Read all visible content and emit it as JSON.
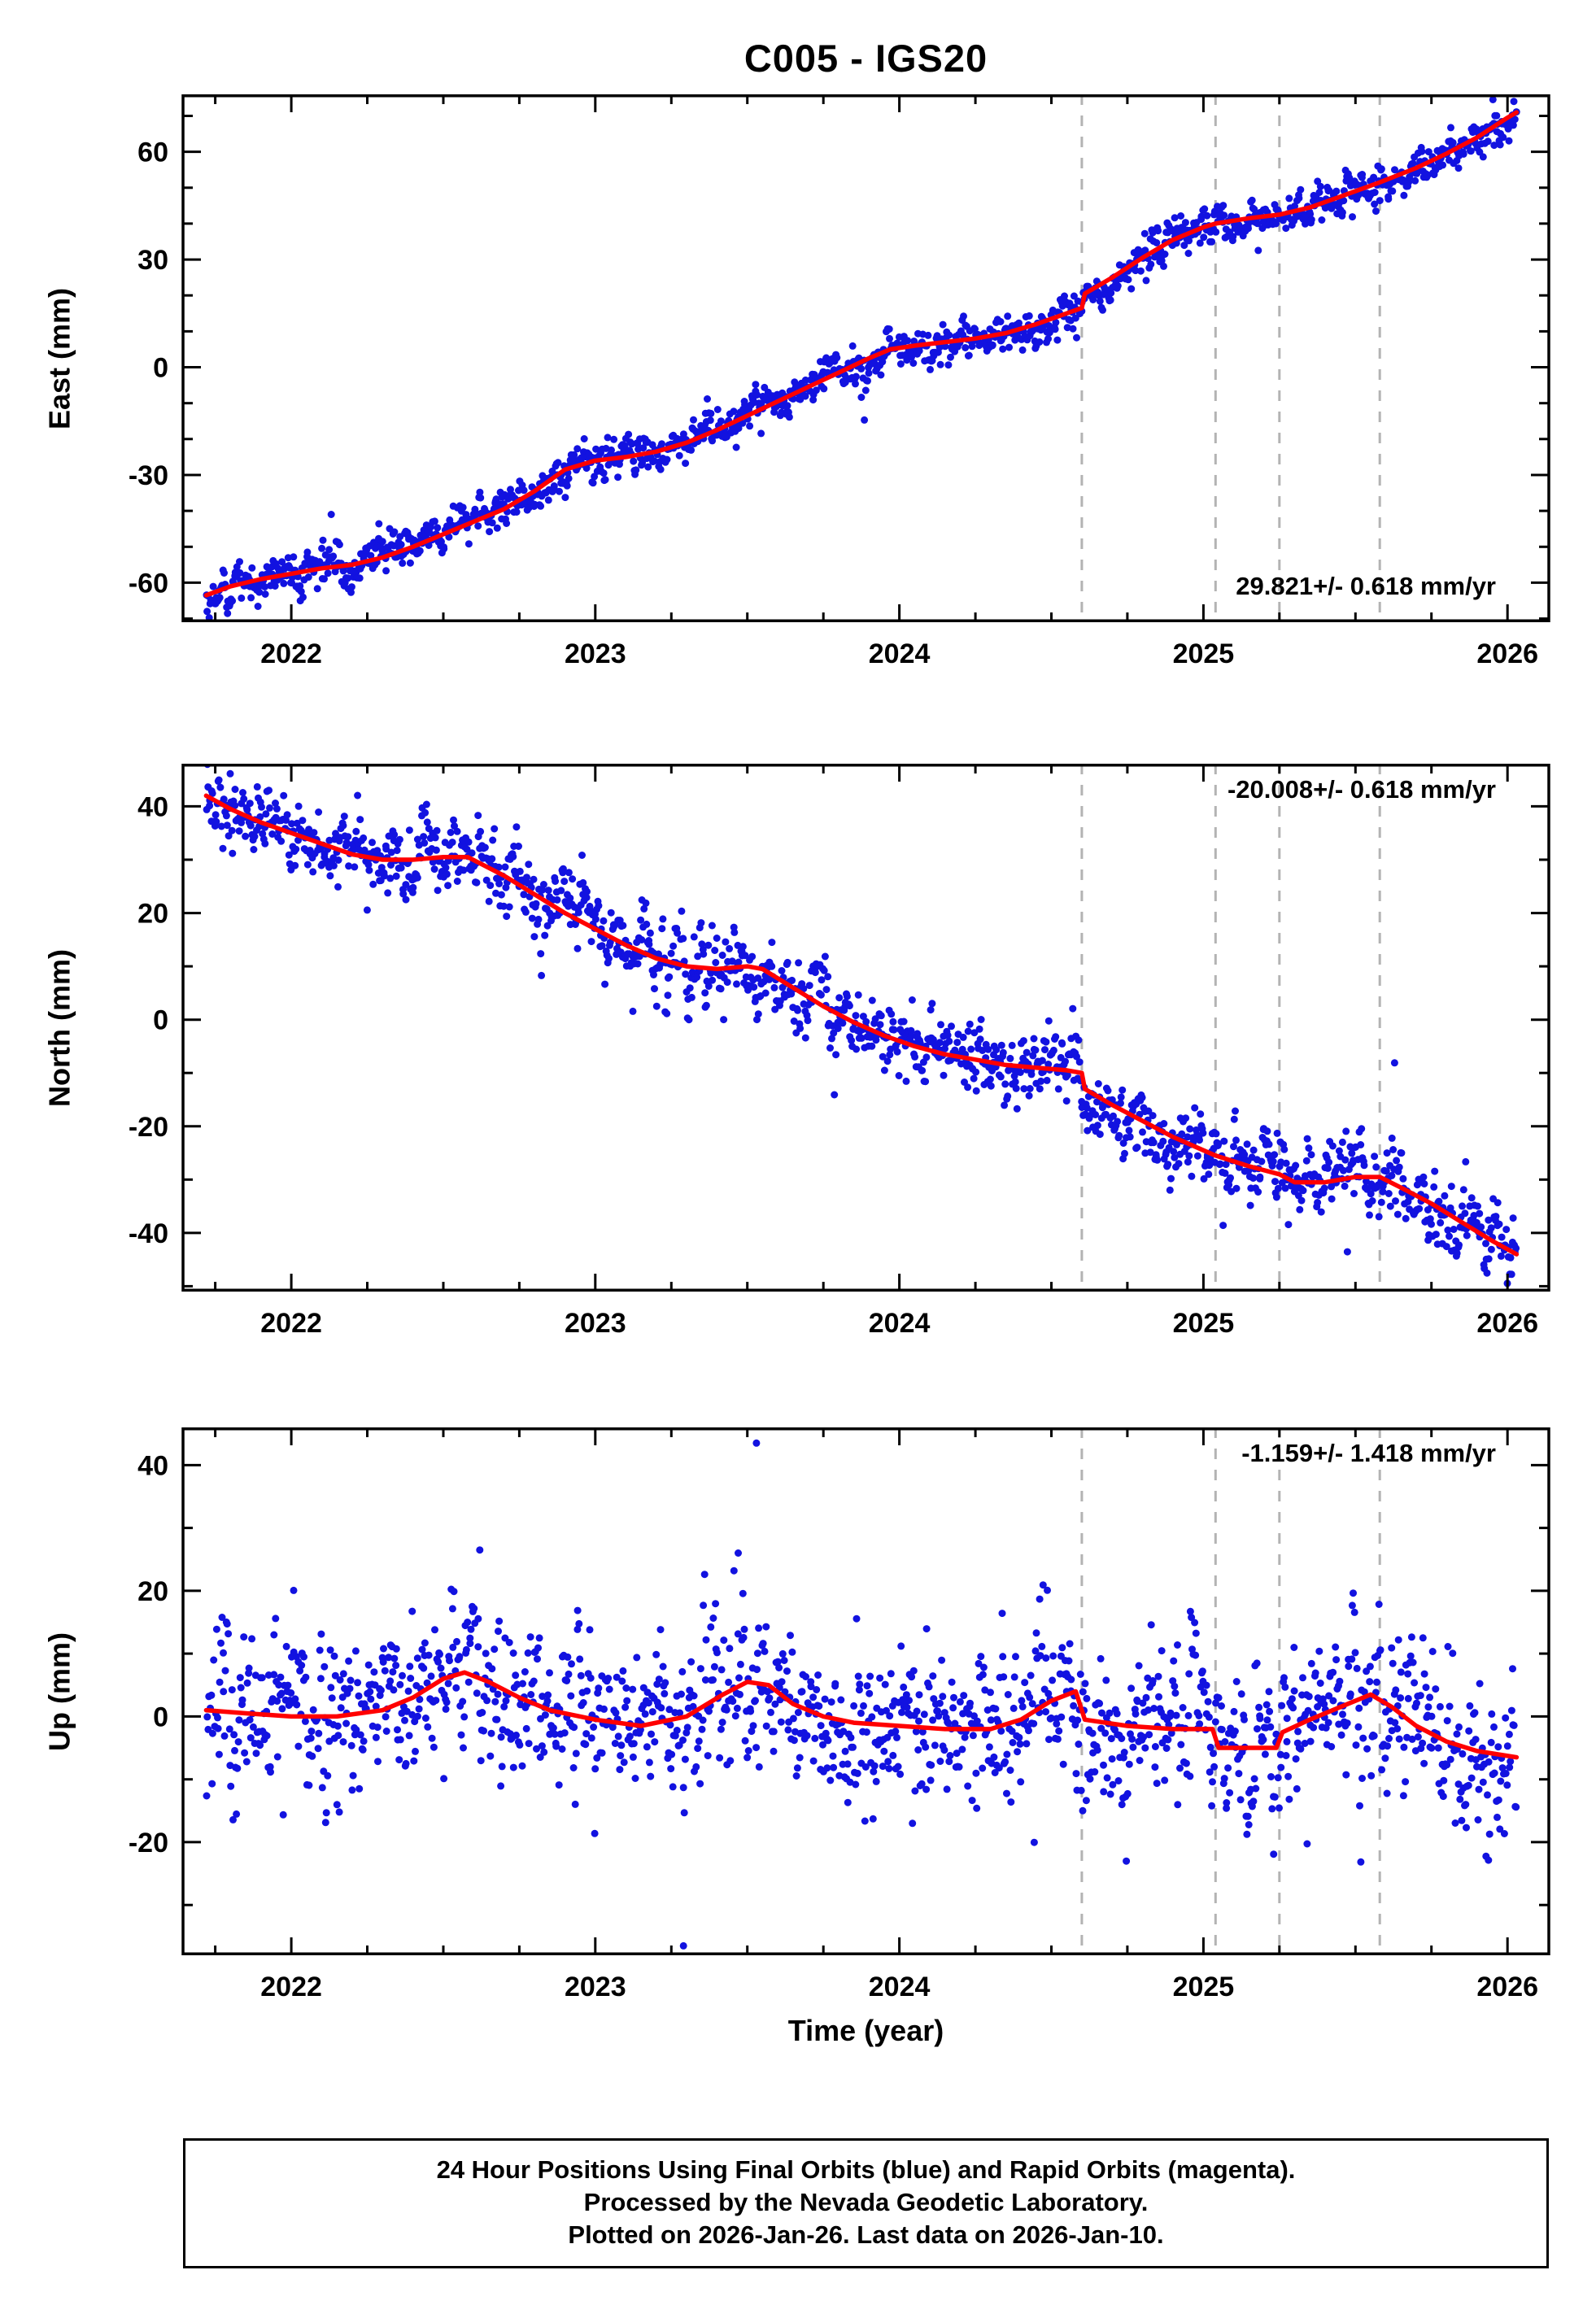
{
  "title": "C005 - IGS20",
  "xlabel": "Time (year)",
  "footer_lines": [
    "24 Hour Positions Using Final Orbits (blue) and Rapid Orbits (magenta).",
    "Processed by the Nevada Geodetic Laboratory.",
    "Plotted on 2026-Jan-26. Last data on 2026-Jan-10."
  ],
  "colors": {
    "points": "#1212e0",
    "trend": "#ff0000",
    "events": "#b3b3b3",
    "frame": "#000000"
  },
  "chart_data": [
    {
      "type": "scatter",
      "name": "east",
      "ylabel": "East (mm)",
      "rate_label": "29.821+/- 0.618 mm/yr",
      "rate_label_corner": "bottom-right",
      "xlim": [
        2021.644,
        2026.136
      ],
      "ylim": [
        -71,
        76
      ],
      "xticks": [
        2022,
        2023,
        2024,
        2025,
        2026
      ],
      "yticks": [
        -60,
        -30,
        0,
        30,
        60
      ],
      "x_minor_step": 0.25,
      "y_minor_step": 10,
      "event_lines_x": [
        2024.6,
        2025.04,
        2025.25,
        2025.58
      ],
      "trend": [
        [
          2021.72,
          -63.5
        ],
        [
          2021.8,
          -61.0
        ],
        [
          2021.9,
          -59.0
        ],
        [
          2022.0,
          -57.5
        ],
        [
          2022.1,
          -56.0
        ],
        [
          2022.2,
          -55.0
        ],
        [
          2022.3,
          -53.0
        ],
        [
          2022.4,
          -50.0
        ],
        [
          2022.5,
          -46.5
        ],
        [
          2022.6,
          -43.0
        ],
        [
          2022.7,
          -39.5
        ],
        [
          2022.8,
          -34.5
        ],
        [
          2022.9,
          -28.5
        ],
        [
          2023.0,
          -26.0
        ],
        [
          2023.1,
          -25.0
        ],
        [
          2023.2,
          -23.5
        ],
        [
          2023.3,
          -21.0
        ],
        [
          2023.4,
          -17.5
        ],
        [
          2023.5,
          -13.5
        ],
        [
          2023.6,
          -9.5
        ],
        [
          2023.7,
          -5.5
        ],
        [
          2023.8,
          -1.5
        ],
        [
          2023.9,
          2.5
        ],
        [
          2023.97,
          5.0
        ],
        [
          2024.05,
          6.0
        ],
        [
          2024.15,
          7.0
        ],
        [
          2024.25,
          8.0
        ],
        [
          2024.35,
          9.5
        ],
        [
          2024.45,
          12.0
        ],
        [
          2024.55,
          15.0
        ],
        [
          2024.6,
          16.5
        ],
        [
          2024.61,
          20.5
        ],
        [
          2024.7,
          25.0
        ],
        [
          2024.8,
          30.5
        ],
        [
          2024.9,
          35.5
        ],
        [
          2025.0,
          39.0
        ],
        [
          2025.04,
          40.0
        ],
        [
          2025.15,
          41.5
        ],
        [
          2025.25,
          42.5
        ],
        [
          2025.35,
          44.5
        ],
        [
          2025.45,
          47.5
        ],
        [
          2025.58,
          51.5
        ],
        [
          2025.7,
          55.5
        ],
        [
          2025.8,
          59.5
        ],
        [
          2025.9,
          64.0
        ],
        [
          2026.0,
          69.5
        ],
        [
          2026.03,
          71.0
        ]
      ],
      "scatter_model": {
        "t_start": 2021.72,
        "t_end": 2026.03,
        "n": 1450,
        "sigma": 2.5,
        "outlier_frac": 0.02,
        "outlier_scale": 6,
        "seed": 11
      },
      "extra_points": []
    },
    {
      "type": "scatter",
      "name": "north",
      "ylabel": "North (mm)",
      "rate_label": "-20.008+/- 0.618 mm/yr",
      "rate_label_corner": "top-right",
      "xlim": [
        2021.644,
        2026.136
      ],
      "ylim": [
        -51,
        48
      ],
      "xticks": [
        2022,
        2023,
        2024,
        2025,
        2026
      ],
      "yticks": [
        -40,
        -20,
        0,
        20,
        40
      ],
      "x_minor_step": 0.25,
      "y_minor_step": 10,
      "event_lines_x": [
        2024.6,
        2025.04,
        2025.25,
        2025.58
      ],
      "trend": [
        [
          2021.72,
          42.0
        ],
        [
          2021.8,
          39.5
        ],
        [
          2021.9,
          37.0
        ],
        [
          2022.0,
          35.0
        ],
        [
          2022.1,
          33.0
        ],
        [
          2022.2,
          31.0
        ],
        [
          2022.3,
          30.0
        ],
        [
          2022.4,
          30.0
        ],
        [
          2022.5,
          30.5
        ],
        [
          2022.58,
          30.5
        ],
        [
          2022.7,
          27.0
        ],
        [
          2022.8,
          23.5
        ],
        [
          2022.9,
          20.0
        ],
        [
          2023.0,
          17.0
        ],
        [
          2023.1,
          14.0
        ],
        [
          2023.2,
          11.5
        ],
        [
          2023.3,
          10.0
        ],
        [
          2023.4,
          9.5
        ],
        [
          2023.5,
          10.0
        ],
        [
          2023.55,
          9.5
        ],
        [
          2023.65,
          6.0
        ],
        [
          2023.75,
          2.5
        ],
        [
          2023.85,
          -0.5
        ],
        [
          2023.95,
          -3.0
        ],
        [
          2024.05,
          -5.0
        ],
        [
          2024.15,
          -6.5
        ],
        [
          2024.25,
          -7.5
        ],
        [
          2024.35,
          -8.5
        ],
        [
          2024.45,
          -9.0
        ],
        [
          2024.55,
          -9.5
        ],
        [
          2024.6,
          -10.0
        ],
        [
          2024.61,
          -13.0
        ],
        [
          2024.7,
          -16.0
        ],
        [
          2024.8,
          -19.0
        ],
        [
          2024.9,
          -22.0
        ],
        [
          2025.0,
          -24.5
        ],
        [
          2025.04,
          -25.5
        ],
        [
          2025.15,
          -27.5
        ],
        [
          2025.25,
          -29.0
        ],
        [
          2025.3,
          -30.5
        ],
        [
          2025.4,
          -30.5
        ],
        [
          2025.5,
          -29.5
        ],
        [
          2025.58,
          -29.5
        ],
        [
          2025.65,
          -31.5
        ],
        [
          2025.75,
          -34.5
        ],
        [
          2025.85,
          -38.0
        ],
        [
          2025.95,
          -41.5
        ],
        [
          2026.03,
          -44.0
        ]
      ],
      "scatter_model": {
        "t_start": 2021.72,
        "t_end": 2026.03,
        "n": 1450,
        "sigma": 3.2,
        "outlier_frac": 0.03,
        "outlier_scale": 7,
        "seed": 22
      },
      "extra_points": []
    },
    {
      "type": "scatter",
      "name": "up",
      "ylabel": "Up (mm)",
      "rate_label": "-1.159+/- 1.418 mm/yr",
      "rate_label_corner": "top-right",
      "xlim": [
        2021.644,
        2026.136
      ],
      "ylim": [
        -38,
        46
      ],
      "xticks": [
        2022,
        2023,
        2024,
        2025,
        2026
      ],
      "yticks": [
        -20,
        0,
        20,
        40
      ],
      "x_minor_step": 0.25,
      "y_minor_step": 10,
      "event_lines_x": [
        2024.6,
        2025.04,
        2025.25,
        2025.58
      ],
      "trend": [
        [
          2021.72,
          1.0
        ],
        [
          2021.85,
          0.5
        ],
        [
          2022.0,
          0.0
        ],
        [
          2022.15,
          0.0
        ],
        [
          2022.3,
          1.0
        ],
        [
          2022.4,
          3.0
        ],
        [
          2022.5,
          6.0
        ],
        [
          2022.57,
          7.0
        ],
        [
          2022.65,
          5.5
        ],
        [
          2022.75,
          3.0
        ],
        [
          2022.85,
          1.0
        ],
        [
          2023.0,
          -0.5
        ],
        [
          2023.15,
          -1.5
        ],
        [
          2023.3,
          0.0
        ],
        [
          2023.42,
          3.5
        ],
        [
          2023.5,
          5.5
        ],
        [
          2023.57,
          5.0
        ],
        [
          2023.65,
          2.0
        ],
        [
          2023.75,
          0.0
        ],
        [
          2023.85,
          -1.0
        ],
        [
          2024.0,
          -1.5
        ],
        [
          2024.15,
          -2.0
        ],
        [
          2024.3,
          -2.0
        ],
        [
          2024.4,
          -0.5
        ],
        [
          2024.5,
          2.5
        ],
        [
          2024.58,
          4.0
        ],
        [
          2024.61,
          -0.5
        ],
        [
          2024.75,
          -1.5
        ],
        [
          2024.9,
          -2.0
        ],
        [
          2025.03,
          -2.0
        ],
        [
          2025.05,
          -5.0
        ],
        [
          2025.15,
          -5.0
        ],
        [
          2025.24,
          -5.0
        ],
        [
          2025.26,
          -2.5
        ],
        [
          2025.35,
          -0.5
        ],
        [
          2025.45,
          1.5
        ],
        [
          2025.55,
          3.5
        ],
        [
          2025.62,
          1.5
        ],
        [
          2025.7,
          -1.5
        ],
        [
          2025.8,
          -4.0
        ],
        [
          2025.9,
          -5.5
        ],
        [
          2026.03,
          -6.5
        ]
      ],
      "scatter_model": {
        "t_start": 2021.72,
        "t_end": 2026.03,
        "n": 1450,
        "sigma": 5.5,
        "outlier_frac": 0.05,
        "outlier_scale": 10,
        "seed": 33
      },
      "extra_points": [
        [
          2023.53,
          43.5
        ],
        [
          2023.29,
          -36.5
        ],
        [
          2023.47,
          26.0
        ],
        [
          2022.62,
          26.5
        ]
      ]
    }
  ]
}
